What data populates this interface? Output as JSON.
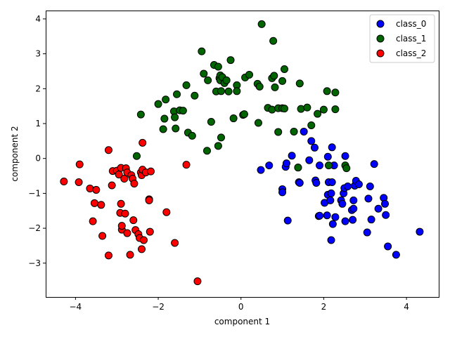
{
  "chart_data": {
    "type": "scatter",
    "title": "",
    "xlabel": "component 1",
    "ylabel": "component 2",
    "xlim": [
      -4.72,
      4.78
    ],
    "ylim": [
      -3.97,
      4.24
    ],
    "xticks": [
      -4,
      -2,
      0,
      2,
      4
    ],
    "yticks": [
      -3,
      -2,
      -1,
      0,
      1,
      2,
      3,
      4
    ],
    "grid": false,
    "legend_position": "top-right",
    "series": [
      {
        "name": "class_0",
        "color": "#0000ff",
        "points": [
          [
            0.48,
            -0.33
          ],
          [
            0.68,
            -0.2
          ],
          [
            1.0,
            -0.88
          ],
          [
            1.0,
            -0.97
          ],
          [
            1.08,
            -0.24
          ],
          [
            1.1,
            -0.14
          ],
          [
            1.13,
            -1.78
          ],
          [
            1.23,
            0.08
          ],
          [
            1.38,
            -0.26
          ],
          [
            1.4,
            -0.68
          ],
          [
            1.42,
            -0.7
          ],
          [
            1.52,
            0.77
          ],
          [
            1.65,
            -0.05
          ],
          [
            1.7,
            0.5
          ],
          [
            1.78,
            0.31
          ],
          [
            1.8,
            -0.63
          ],
          [
            1.82,
            -0.7
          ],
          [
            1.88,
            -1.65
          ],
          [
            1.9,
            -0.2
          ],
          [
            1.9,
            -1.64
          ],
          [
            2.02,
            -1.27
          ],
          [
            2.08,
            -1.63
          ],
          [
            2.1,
            0.05
          ],
          [
            2.1,
            -1.04
          ],
          [
            2.12,
            -0.68
          ],
          [
            2.16,
            -1.2
          ],
          [
            2.18,
            -1.0
          ],
          [
            2.18,
            -2.34
          ],
          [
            2.2,
            -0.68
          ],
          [
            2.2,
            0.32
          ],
          [
            2.22,
            -1.88
          ],
          [
            2.25,
            -0.2
          ],
          [
            2.28,
            -1.68
          ],
          [
            2.42,
            -1.2
          ],
          [
            2.45,
            -1.3
          ],
          [
            2.48,
            -1.0
          ],
          [
            2.5,
            -0.85
          ],
          [
            2.52,
            -1.8
          ],
          [
            2.52,
            0.07
          ],
          [
            2.58,
            -0.8
          ],
          [
            2.68,
            -1.48
          ],
          [
            2.7,
            -1.76
          ],
          [
            2.72,
            -1.2
          ],
          [
            2.72,
            -1.44
          ],
          [
            2.75,
            -0.78
          ],
          [
            2.78,
            -0.64
          ],
          [
            2.85,
            -0.74
          ],
          [
            3.05,
            -2.12
          ],
          [
            3.08,
            -1.15
          ],
          [
            3.12,
            -0.8
          ],
          [
            3.15,
            -1.75
          ],
          [
            3.22,
            -0.16
          ],
          [
            3.32,
            -1.44
          ],
          [
            3.45,
            -1.13
          ],
          [
            3.48,
            -1.3
          ],
          [
            3.5,
            -1.62
          ],
          [
            3.55,
            -2.52
          ],
          [
            3.75,
            -2.76
          ],
          [
            4.32,
            -2.1
          ]
        ]
      },
      {
        "name": "class_1",
        "color": "#006400",
        "points": [
          [
            -2.52,
            0.07
          ],
          [
            -2.42,
            1.26
          ],
          [
            -2.0,
            1.56
          ],
          [
            -1.88,
            0.84
          ],
          [
            -1.85,
            1.14
          ],
          [
            -1.82,
            1.69
          ],
          [
            -1.62,
            1.35
          ],
          [
            -1.6,
            1.18
          ],
          [
            -1.58,
            0.86
          ],
          [
            -1.55,
            1.84
          ],
          [
            -1.48,
            1.38
          ],
          [
            -1.4,
            1.37
          ],
          [
            -1.32,
            2.1
          ],
          [
            -1.28,
            0.74
          ],
          [
            -1.18,
            0.65
          ],
          [
            -1.12,
            1.8
          ],
          [
            -0.95,
            3.07
          ],
          [
            -0.9,
            2.43
          ],
          [
            -0.82,
            0.22
          ],
          [
            -0.8,
            2.24
          ],
          [
            -0.72,
            1.05
          ],
          [
            -0.65,
            2.68
          ],
          [
            -0.6,
            1.92
          ],
          [
            -0.55,
            2.63
          ],
          [
            -0.55,
            0.36
          ],
          [
            -0.52,
            2.3
          ],
          [
            -0.5,
            2.38
          ],
          [
            -0.5,
            2.24
          ],
          [
            -0.48,
            1.93
          ],
          [
            -0.48,
            0.6
          ],
          [
            -0.45,
            2.33
          ],
          [
            -0.4,
            2.16
          ],
          [
            -0.35,
            2.24
          ],
          [
            -0.3,
            1.92
          ],
          [
            -0.25,
            2.82
          ],
          [
            -0.18,
            1.15
          ],
          [
            -0.1,
            2.1
          ],
          [
            -0.1,
            1.93
          ],
          [
            0.05,
            1.25
          ],
          [
            0.08,
            1.27
          ],
          [
            0.1,
            2.32
          ],
          [
            0.2,
            2.4
          ],
          [
            0.4,
            2.14
          ],
          [
            0.42,
            1.02
          ],
          [
            0.45,
            2.06
          ],
          [
            0.5,
            3.85
          ],
          [
            0.65,
            1.45
          ],
          [
            0.75,
            2.3
          ],
          [
            0.75,
            1.4
          ],
          [
            0.78,
            3.37
          ],
          [
            0.8,
            2.37
          ],
          [
            0.82,
            2.04
          ],
          [
            0.9,
            0.76
          ],
          [
            0.9,
            1.44
          ],
          [
            1.0,
            2.22
          ],
          [
            1.0,
            1.44
          ],
          [
            1.05,
            2.56
          ],
          [
            1.05,
            1.43
          ],
          [
            1.28,
            0.77
          ],
          [
            1.38,
            -0.26
          ],
          [
            1.42,
            2.15
          ],
          [
            1.45,
            1.42
          ],
          [
            1.6,
            1.46
          ],
          [
            1.7,
            0.95
          ],
          [
            1.85,
            1.28
          ],
          [
            2.0,
            1.4
          ],
          [
            2.08,
            1.93
          ],
          [
            2.12,
            -0.2
          ],
          [
            2.28,
            1.89
          ],
          [
            2.28,
            1.41
          ],
          [
            2.52,
            -0.2
          ],
          [
            2.55,
            -0.28
          ]
        ]
      },
      {
        "name": "class_2",
        "color": "#ff0000",
        "points": [
          [
            -4.28,
            -0.66
          ],
          [
            -3.92,
            -0.68
          ],
          [
            -3.9,
            -0.17
          ],
          [
            -3.65,
            -0.86
          ],
          [
            -3.58,
            -1.8
          ],
          [
            -3.54,
            -1.28
          ],
          [
            -3.5,
            -0.9
          ],
          [
            -3.38,
            -1.33
          ],
          [
            -3.35,
            -2.22
          ],
          [
            -3.2,
            0.24
          ],
          [
            -3.2,
            -2.78
          ],
          [
            -3.12,
            -0.77
          ],
          [
            -3.1,
            -0.36
          ],
          [
            -3.0,
            -0.35
          ],
          [
            -2.95,
            -0.46
          ],
          [
            -2.92,
            -1.56
          ],
          [
            -2.9,
            -1.3
          ],
          [
            -2.9,
            -0.27
          ],
          [
            -2.88,
            -2.04
          ],
          [
            -2.88,
            -1.93
          ],
          [
            -2.82,
            -0.58
          ],
          [
            -2.8,
            -1.58
          ],
          [
            -2.78,
            -0.28
          ],
          [
            -2.75,
            -0.4
          ],
          [
            -2.75,
            -2.14
          ],
          [
            -2.68,
            -2.76
          ],
          [
            -2.65,
            -0.48
          ],
          [
            -2.62,
            -0.58
          ],
          [
            -2.6,
            -1.77
          ],
          [
            -2.58,
            -0.72
          ],
          [
            -2.55,
            -2.05
          ],
          [
            -2.48,
            -2.17
          ],
          [
            -2.45,
            -2.28
          ],
          [
            -2.42,
            -0.4
          ],
          [
            -2.4,
            -2.6
          ],
          [
            -2.4,
            -0.48
          ],
          [
            -2.38,
            -0.32
          ],
          [
            -2.38,
            0.45
          ],
          [
            -2.35,
            -2.34
          ],
          [
            -2.3,
            -0.4
          ],
          [
            -2.22,
            -1.17
          ],
          [
            -2.22,
            -1.2
          ],
          [
            -2.2,
            -2.1
          ],
          [
            -2.18,
            -0.37
          ],
          [
            -1.8,
            -1.54
          ],
          [
            -1.6,
            -2.42
          ],
          [
            -1.32,
            -0.18
          ],
          [
            -1.05,
            -3.52
          ]
        ]
      }
    ]
  }
}
